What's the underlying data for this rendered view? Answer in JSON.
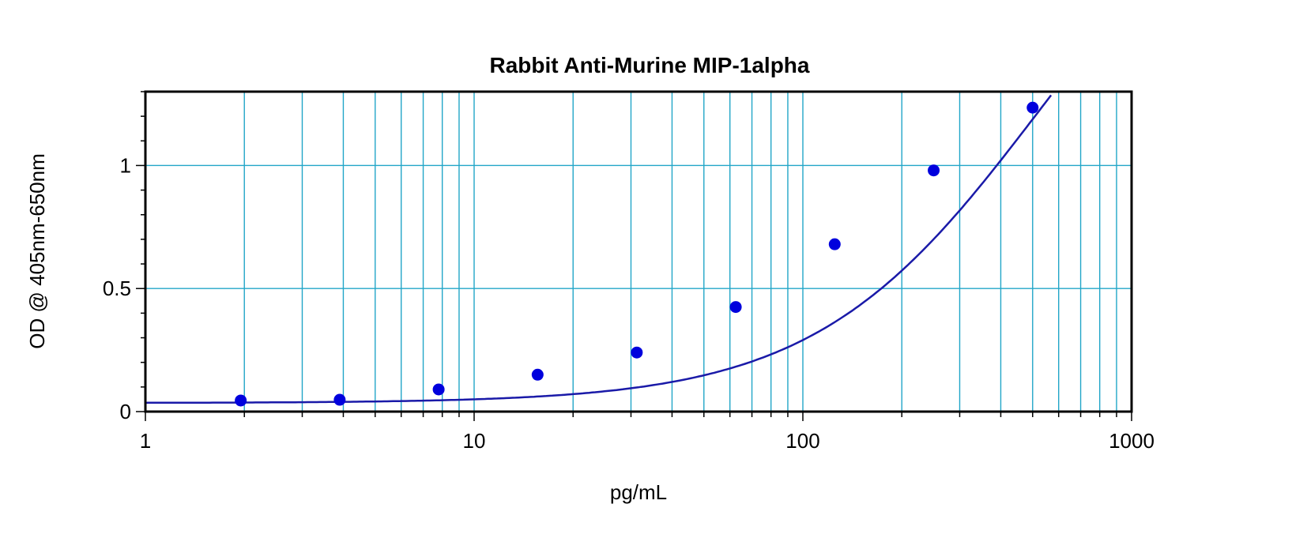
{
  "chart_data": {
    "type": "scatter",
    "title": "Rabbit Anti-Murine MIP-1alpha",
    "xlabel": "pg/mL",
    "ylabel": "OD @ 405nm-650nm",
    "xscale": "log",
    "xlim": [
      1,
      1000
    ],
    "ylim": [
      0,
      1.3
    ],
    "grid": true,
    "x_tick_labels": [
      "1",
      "10",
      "100",
      "1000"
    ],
    "y_tick_labels": [
      "0",
      "0.5",
      "1"
    ],
    "series": [
      {
        "points": [
          {
            "x": 1.95,
            "y": 0.045
          },
          {
            "x": 3.9,
            "y": 0.048
          },
          {
            "x": 7.8,
            "y": 0.09
          },
          {
            "x": 15.6,
            "y": 0.15
          },
          {
            "x": 31.25,
            "y": 0.24
          },
          {
            "x": 62.5,
            "y": 0.425
          },
          {
            "x": 125,
            "y": 0.68
          },
          {
            "x": 250,
            "y": 0.98
          },
          {
            "x": 500,
            "y": 1.235
          }
        ],
        "fit_curve": "4PL",
        "color": "#0000dd",
        "line_color": "#1a1aa8"
      }
    ],
    "grid_color": "#22a6c8"
  }
}
